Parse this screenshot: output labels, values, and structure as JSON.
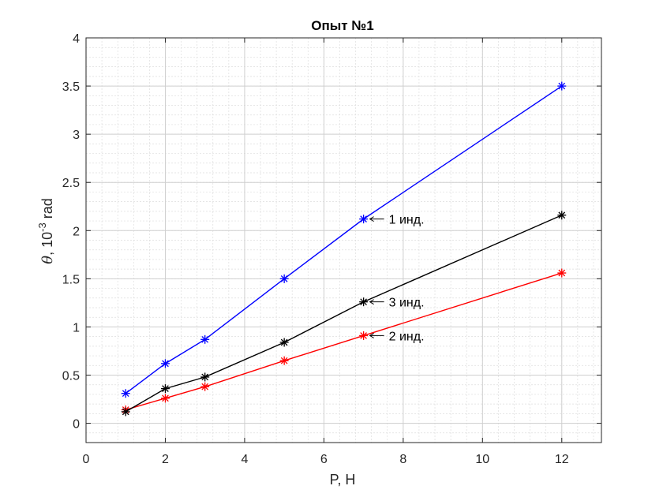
{
  "chart_data": {
    "type": "line",
    "title": "Опыт №1",
    "xlabel": "P, Н",
    "ylabel": {
      "symbol": "θ",
      "text": ", 10",
      "exponent": "-3",
      "unit": " rad"
    },
    "xlim": [
      0,
      13
    ],
    "ylim": [
      -0.2,
      4
    ],
    "xticks": [
      0,
      2,
      4,
      6,
      8,
      10,
      12
    ],
    "yticks": [
      0,
      0.5,
      1,
      1.5,
      2,
      2.5,
      3,
      3.5,
      4
    ],
    "xtick_labels": [
      "0",
      "2",
      "4",
      "6",
      "8",
      "10",
      "12"
    ],
    "ytick_labels": [
      "0",
      "0.5",
      "1",
      "1.5",
      "2",
      "2.5",
      "3",
      "3.5",
      "4"
    ],
    "grid": true,
    "minor_grid": true,
    "series": [
      {
        "color": "#0000ff",
        "marker": "asterisk",
        "x": [
          1,
          2,
          3,
          5,
          7,
          12
        ],
        "y": [
          0.31,
          0.62,
          0.87,
          1.5,
          2.12,
          3.5
        ]
      },
      {
        "color": "#ff0000",
        "marker": "asterisk",
        "x": [
          1,
          2,
          3,
          5,
          7,
          12
        ],
        "y": [
          0.14,
          0.26,
          0.38,
          0.65,
          0.91,
          1.56
        ]
      },
      {
        "color": "#000000",
        "marker": "asterisk",
        "x": [
          1,
          2,
          3,
          5,
          7,
          12
        ],
        "y": [
          0.12,
          0.36,
          0.48,
          0.84,
          1.26,
          2.16
        ]
      }
    ],
    "annotations": [
      {
        "text": "1 инд.",
        "x": 7,
        "y": 2.12
      },
      {
        "text": "3 инд.",
        "x": 7,
        "y": 1.26
      },
      {
        "text": "2 инд.",
        "x": 7,
        "y": 0.91
      }
    ]
  }
}
